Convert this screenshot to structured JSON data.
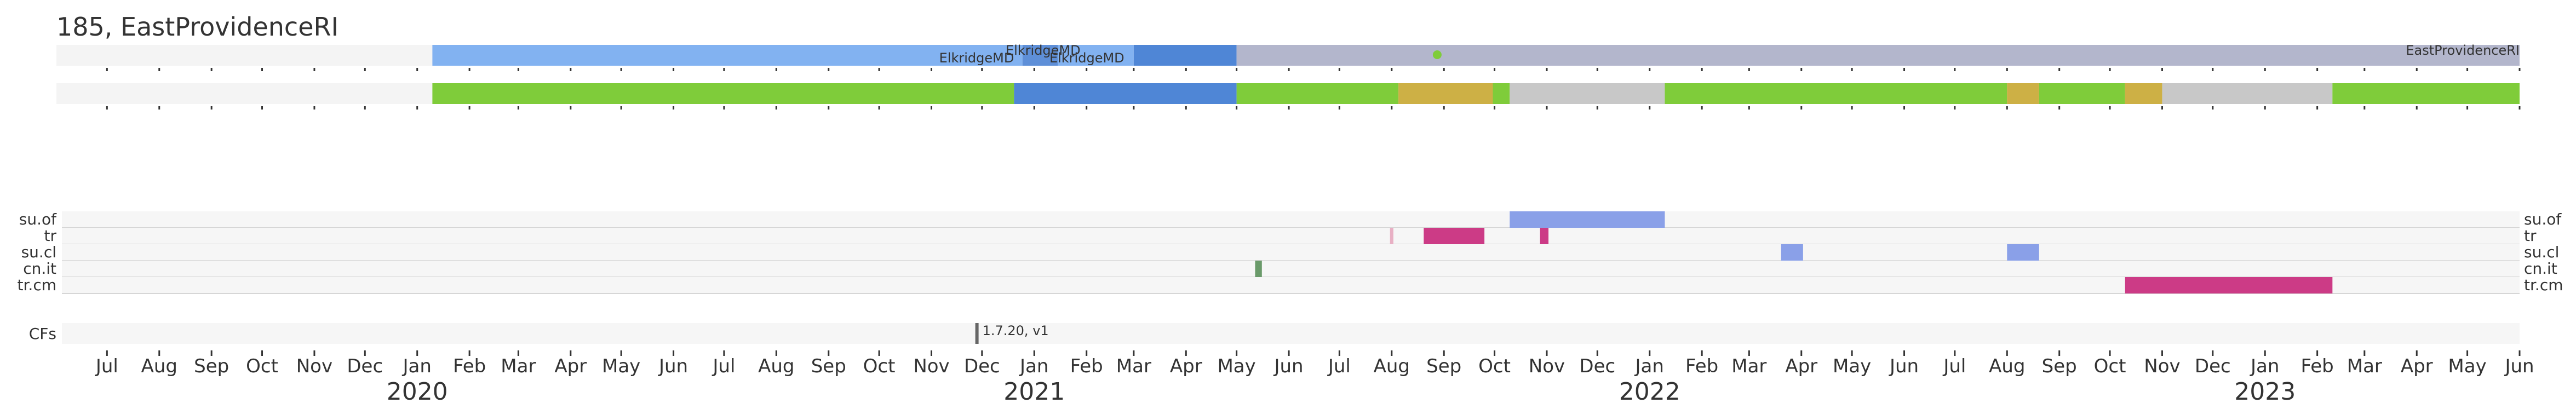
{
  "title": "185, EastProvidenceRI",
  "chart_data": {
    "type": "timeline",
    "x_range": [
      "2019-06-01",
      "2023-06-01"
    ],
    "month_ticks": [
      "Jul",
      "Aug",
      "Sep",
      "Oct",
      "Nov",
      "Dec",
      "Jan",
      "Feb",
      "Mar",
      "Apr",
      "May",
      "Jun",
      "Jul",
      "Aug",
      "Sep",
      "Oct",
      "Nov",
      "Dec",
      "Jan",
      "Feb",
      "Mar",
      "Apr",
      "May",
      "Jun",
      "Jul",
      "Aug",
      "Sep",
      "Oct",
      "Nov",
      "Dec",
      "Jan",
      "Feb",
      "Mar",
      "Apr",
      "May",
      "Jun",
      "Jul",
      "Aug",
      "Sep",
      "Oct",
      "Nov",
      "Dec",
      "Jan",
      "Feb",
      "Mar",
      "Apr",
      "May",
      "Jun"
    ],
    "year_labels": [
      {
        "label": "2020",
        "date": "2020-01-01"
      },
      {
        "label": "2021",
        "date": "2021-01-01"
      },
      {
        "label": "2022",
        "date": "2022-01-01"
      },
      {
        "label": "2023",
        "date": "2023-01-01"
      }
    ],
    "location_track": {
      "segments": [
        {
          "start": "2020-01-10",
          "end": "2020-12-25",
          "color": "#82b2f1"
        },
        {
          "start": "2020-12-25",
          "end": "2021-01-15",
          "color": "#5e8fd8"
        },
        {
          "start": "2021-01-15",
          "end": "2021-03-01",
          "color": "#82b2f1"
        },
        {
          "start": "2021-03-01",
          "end": "2021-05-01",
          "color": "#4f86d6"
        },
        {
          "start": "2021-05-01",
          "end": "2023-06-01",
          "color": "#b3b6cc"
        }
      ],
      "labels": [
        {
          "text": "ElkridgeMD",
          "date": "2020-12-20",
          "row": "low",
          "anchor": "end"
        },
        {
          "text": "ElkridgeMD",
          "date": "2020-12-15",
          "row": "high",
          "anchor": "start"
        },
        {
          "text": "ElkridgeMD",
          "date": "2021-01-10",
          "row": "low",
          "anchor": "start"
        },
        {
          "text": "EastProvidenceRI",
          "date": "2023-06-01",
          "row": "high",
          "anchor": "end"
        }
      ],
      "dot": {
        "date": "2021-08-28",
        "color": "#7fcc3a"
      }
    },
    "status_track": {
      "segments": [
        {
          "start": "2020-01-10",
          "end": "2020-12-20",
          "color": "#7fcc3a"
        },
        {
          "start": "2020-12-20",
          "end": "2021-05-01",
          "color": "#4f86d6"
        },
        {
          "start": "2021-05-01",
          "end": "2021-08-05",
          "color": "#7fcc3a"
        },
        {
          "start": "2021-08-05",
          "end": "2021-09-30",
          "color": "#cdb045"
        },
        {
          "start": "2021-09-30",
          "end": "2021-10-10",
          "color": "#7fcc3a"
        },
        {
          "start": "2021-10-10",
          "end": "2022-01-10",
          "color": "#c8c8c8"
        },
        {
          "start": "2022-01-10",
          "end": "2022-08-01",
          "color": "#7fcc3a"
        },
        {
          "start": "2022-08-01",
          "end": "2022-08-20",
          "color": "#cdb045"
        },
        {
          "start": "2022-08-20",
          "end": "2022-10-10",
          "color": "#7fcc3a"
        },
        {
          "start": "2022-10-10",
          "end": "2022-11-01",
          "color": "#cdb045"
        },
        {
          "start": "2022-11-01",
          "end": "2023-02-10",
          "color": "#c8c8c8"
        },
        {
          "start": "2023-02-10",
          "end": "2023-06-01",
          "color": "#7fcc3a"
        }
      ]
    },
    "event_rows": [
      {
        "name": "su.of",
        "segments": [
          {
            "start": "2021-10-10",
            "end": "2022-01-10",
            "color": "#8aa0e8"
          }
        ]
      },
      {
        "name": "tr",
        "segments": [
          {
            "start": "2021-07-31",
            "end": "2021-08-02",
            "color": "#e8b0c4"
          },
          {
            "start": "2021-08-20",
            "end": "2021-09-25",
            "color": "#cc3b86"
          },
          {
            "start": "2021-10-28",
            "end": "2021-11-02",
            "color": "#cc3b86"
          }
        ]
      },
      {
        "name": "su.cl",
        "segments": [
          {
            "start": "2022-03-20",
            "end": "2022-04-02",
            "color": "#8aa0e8"
          },
          {
            "start": "2022-08-01",
            "end": "2022-08-20",
            "color": "#8aa0e8"
          }
        ]
      },
      {
        "name": "cn.it",
        "segments": [
          {
            "start": "2021-05-12",
            "end": "2021-05-16",
            "color": "#6a9a6a"
          }
        ]
      },
      {
        "name": "tr.cm",
        "segments": [
          {
            "start": "2022-10-10",
            "end": "2023-02-10",
            "color": "#cc3b86"
          }
        ]
      }
    ],
    "cfs": {
      "label": "CFs",
      "marker": {
        "date": "2020-11-28",
        "text": "1.7.20, v1",
        "color": "#666666"
      }
    }
  }
}
